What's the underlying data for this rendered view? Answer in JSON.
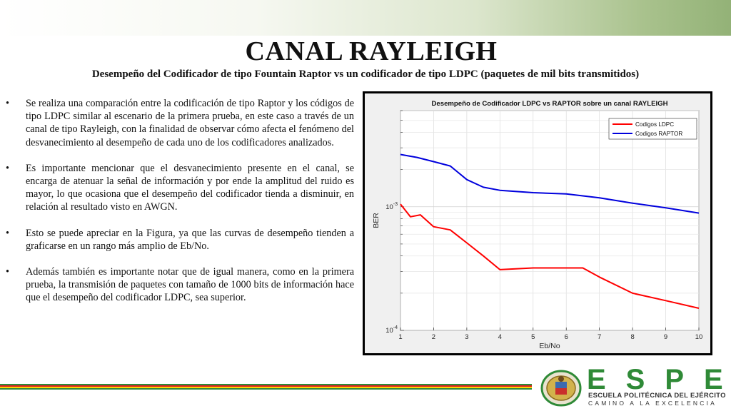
{
  "slide": {
    "title": "CANAL RAYLEIGH",
    "subtitle": "Desempeño del Codificador de tipo Fountain Raptor vs un codificador de tipo LDPC (paquetes de mil bits transmitidos)",
    "bullet_symbol": "•",
    "bullets": [
      "Se realiza una comparación entre la codificación de tipo Raptor y los códigos de tipo LDPC similar al escenario de la primera prueba, en este caso a través de un canal de tipo Rayleigh, con la finalidad de observar cómo afecta el fenómeno del desvanecimiento al desempeño de cada uno de los codificadores analizados.",
      "Es importante mencionar que el desvanecimiento presente en el canal, se encarga de atenuar la señal de información y por ende la amplitud del ruido es mayor, lo que ocasiona que el desempeño del codificador tienda a disminuir, en relación al resultado visto en AWGN.",
      "Esto se puede apreciar  en la Figura, ya que las curvas de desempeño tienden a graficarse en un rango más amplio de Eb/No.",
      "Además también es importante notar que de igual manera, como en la primera prueba, la transmisión de paquetes con tamaño de 1000 bits de información hace que el desempeño del codificador LDPC, sea superior."
    ]
  },
  "chart_data": {
    "type": "line",
    "title": "Desempeño de Codificador LDPC vs RAPTOR sobre un canal RAYLEIGH",
    "xlabel": "Eb/No",
    "ylabel": "BER",
    "xlim": [
      1,
      10
    ],
    "ylim": [
      0.0001,
      0.006
    ],
    "yscale": "log",
    "grid": true,
    "legend_position": "top-right",
    "x_ticks": [
      "1",
      "2",
      "3",
      "4",
      "5",
      "6",
      "7",
      "8",
      "9",
      "10"
    ],
    "y_ticks": [
      {
        "value": 0.001,
        "base": "10",
        "exp": "-3"
      },
      {
        "value": 0.0001,
        "base": "10",
        "exp": "-4"
      }
    ],
    "series": [
      {
        "name": "Codigos LDPC",
        "color": "#ff0000",
        "x": [
          1,
          1.3,
          1.6,
          2,
          2.5,
          3,
          3.5,
          4,
          5,
          6,
          6.5,
          7,
          8,
          9,
          10
        ],
        "y": [
          0.00105,
          0.00083,
          0.00086,
          0.00069,
          0.00065,
          0.00051,
          0.0004,
          0.00031,
          0.00032,
          0.00032,
          0.00032,
          0.00027,
          0.0002,
          0.000174,
          0.000151
        ]
      },
      {
        "name": "Codigos RAPTOR",
        "color": "#0000dd",
        "x": [
          1,
          1.5,
          2,
          2.5,
          3,
          3.5,
          4,
          5,
          6,
          7,
          8,
          9,
          10
        ],
        "y": [
          0.00265,
          0.00251,
          0.00232,
          0.00214,
          0.00166,
          0.00144,
          0.00136,
          0.0013,
          0.00127,
          0.00118,
          0.00107,
          0.00098,
          0.00089
        ]
      }
    ]
  },
  "footer": {
    "stripe_colors": [
      "#2f8a37",
      "#e02020",
      "#ffd400",
      "#2f8a37"
    ],
    "brand_letters": "ESPE",
    "brand_line1": "ESCUELA POLITÉCNICA DEL EJÉRCITO",
    "brand_line2": "CAMINO A LA EXCELENCIA"
  }
}
